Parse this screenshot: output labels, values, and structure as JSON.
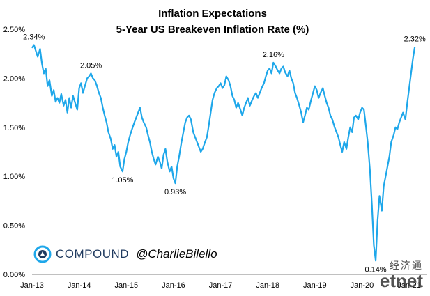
{
  "chart_data": {
    "type": "line",
    "title": "Inflation Expectations",
    "subtitle": "5-Year US Breakeven Inflation Rate (%)",
    "xlabel": "",
    "ylabel": "",
    "xlim": [
      2013.0,
      2021.25
    ],
    "ylim": [
      0,
      2.5
    ],
    "y_ticks": [
      "0.00%",
      "0.50%",
      "1.00%",
      "1.50%",
      "2.00%",
      "2.50%"
    ],
    "y_tick_values": [
      0,
      0.5,
      1.0,
      1.5,
      2.0,
      2.5
    ],
    "x_ticks": [
      "Jan-13",
      "Jan-14",
      "Jan-15",
      "Jan-16",
      "Jan-17",
      "Jan-18",
      "Jan-19",
      "Jan-20",
      "Jan-21"
    ],
    "x_tick_values": [
      2013,
      2014,
      2015,
      2016,
      2017,
      2018,
      2019,
      2020,
      2021
    ],
    "grid": false,
    "legend": "none",
    "series": [
      {
        "color": "#1ea7ea",
        "x": [
          2013.0,
          2013.04,
          2013.08,
          2013.12,
          2013.17,
          2013.21,
          2013.25,
          2013.29,
          2013.33,
          2013.37,
          2013.42,
          2013.46,
          2013.5,
          2013.54,
          2013.58,
          2013.62,
          2013.67,
          2013.71,
          2013.75,
          2013.79,
          2013.83,
          2013.87,
          2013.92,
          2013.96,
          2014.0,
          2014.04,
          2014.08,
          2014.12,
          2014.17,
          2014.21,
          2014.25,
          2014.29,
          2014.33,
          2014.37,
          2014.42,
          2014.46,
          2014.5,
          2014.54,
          2014.58,
          2014.62,
          2014.67,
          2014.71,
          2014.75,
          2014.79,
          2014.83,
          2014.87,
          2014.92,
          2014.96,
          2015.0,
          2015.04,
          2015.08,
          2015.12,
          2015.17,
          2015.21,
          2015.25,
          2015.29,
          2015.33,
          2015.37,
          2015.42,
          2015.46,
          2015.5,
          2015.54,
          2015.58,
          2015.62,
          2015.67,
          2015.71,
          2015.75,
          2015.79,
          2015.83,
          2015.87,
          2015.92,
          2015.96,
          2016.0,
          2016.04,
          2016.08,
          2016.12,
          2016.17,
          2016.21,
          2016.25,
          2016.29,
          2016.33,
          2016.37,
          2016.42,
          2016.46,
          2016.5,
          2016.54,
          2016.58,
          2016.62,
          2016.67,
          2016.71,
          2016.75,
          2016.79,
          2016.83,
          2016.87,
          2016.92,
          2016.96,
          2017.0,
          2017.04,
          2017.08,
          2017.12,
          2017.17,
          2017.21,
          2017.25,
          2017.29,
          2017.33,
          2017.37,
          2017.42,
          2017.46,
          2017.5,
          2017.54,
          2017.58,
          2017.62,
          2017.67,
          2017.71,
          2017.75,
          2017.79,
          2017.83,
          2017.87,
          2017.92,
          2017.96,
          2018.0,
          2018.04,
          2018.08,
          2018.12,
          2018.17,
          2018.21,
          2018.25,
          2018.29,
          2018.33,
          2018.37,
          2018.42,
          2018.46,
          2018.5,
          2018.54,
          2018.58,
          2018.62,
          2018.67,
          2018.71,
          2018.75,
          2018.79,
          2018.83,
          2018.87,
          2018.92,
          2018.96,
          2019.0,
          2019.04,
          2019.08,
          2019.12,
          2019.17,
          2019.21,
          2019.25,
          2019.29,
          2019.33,
          2019.37,
          2019.42,
          2019.46,
          2019.5,
          2019.54,
          2019.58,
          2019.62,
          2019.67,
          2019.71,
          2019.75,
          2019.79,
          2019.83,
          2019.87,
          2019.92,
          2019.96,
          2020.0,
          2020.04,
          2020.08,
          2020.12,
          2020.17,
          2020.21,
          2020.25,
          2020.29,
          2020.33,
          2020.37,
          2020.42,
          2020.46,
          2020.5,
          2020.54,
          2020.58,
          2020.62,
          2020.67,
          2020.71,
          2020.75,
          2020.79,
          2020.83,
          2020.87,
          2020.92,
          2020.96,
          2021.0,
          2021.04,
          2021.08,
          2021.12
        ],
        "values": [
          2.31,
          2.34,
          2.28,
          2.22,
          2.3,
          2.15,
          2.05,
          2.1,
          1.92,
          1.98,
          1.82,
          1.88,
          1.76,
          1.8,
          1.75,
          1.84,
          1.72,
          1.78,
          1.65,
          1.8,
          1.7,
          1.82,
          1.74,
          1.68,
          1.9,
          1.95,
          1.85,
          1.92,
          2.0,
          2.02,
          2.05,
          2.0,
          1.98,
          1.93,
          1.85,
          1.8,
          1.7,
          1.62,
          1.55,
          1.45,
          1.38,
          1.28,
          1.32,
          1.2,
          1.25,
          1.1,
          1.05,
          1.18,
          1.25,
          1.35,
          1.42,
          1.48,
          1.55,
          1.6,
          1.65,
          1.7,
          1.6,
          1.55,
          1.5,
          1.42,
          1.35,
          1.25,
          1.18,
          1.12,
          1.2,
          1.15,
          1.08,
          1.22,
          1.28,
          1.15,
          1.05,
          1.1,
          0.98,
          0.93,
          1.1,
          1.2,
          1.35,
          1.45,
          1.55,
          1.6,
          1.62,
          1.58,
          1.45,
          1.4,
          1.35,
          1.3,
          1.25,
          1.28,
          1.35,
          1.4,
          1.52,
          1.65,
          1.78,
          1.85,
          1.9,
          1.92,
          1.95,
          1.9,
          1.93,
          2.02,
          1.98,
          1.92,
          1.82,
          1.78,
          1.7,
          1.75,
          1.68,
          1.62,
          1.7,
          1.75,
          1.8,
          1.72,
          1.78,
          1.82,
          1.85,
          1.8,
          1.85,
          1.9,
          1.95,
          2.02,
          2.08,
          2.1,
          2.05,
          2.16,
          2.12,
          2.08,
          2.05,
          2.1,
          2.12,
          2.06,
          2.02,
          2.08,
          2.0,
          1.95,
          1.85,
          1.8,
          1.72,
          1.65,
          1.55,
          1.62,
          1.7,
          1.68,
          1.78,
          1.85,
          1.92,
          1.88,
          1.8,
          1.85,
          1.9,
          1.82,
          1.75,
          1.7,
          1.62,
          1.58,
          1.5,
          1.45,
          1.4,
          1.32,
          1.25,
          1.35,
          1.28,
          1.4,
          1.5,
          1.45,
          1.6,
          1.62,
          1.58,
          1.65,
          1.7,
          1.68,
          1.52,
          1.35,
          1.05,
          0.7,
          0.3,
          0.14,
          0.55,
          0.8,
          0.65,
          0.9,
          1.0,
          1.1,
          1.2,
          1.35,
          1.42,
          1.5,
          1.48,
          1.55,
          1.6,
          1.65,
          1.58,
          1.75,
          1.9,
          2.05,
          2.2,
          2.32
        ]
      }
    ],
    "annotations": [
      {
        "text": "2.34%",
        "x": 2013.04,
        "y": 2.34
      },
      {
        "text": "2.05%",
        "x": 2014.25,
        "y": 2.05
      },
      {
        "text": "1.05%",
        "x": 2014.92,
        "y": 1.05
      },
      {
        "text": "0.93%",
        "x": 2016.04,
        "y": 0.93
      },
      {
        "text": "2.16%",
        "x": 2018.12,
        "y": 2.16
      },
      {
        "text": "0.14%",
        "x": 2020.29,
        "y": 0.14
      },
      {
        "text": "2.32%",
        "x": 2021.12,
        "y": 2.32
      }
    ]
  },
  "branding": {
    "logo_icon": "compound-logo-icon",
    "name": "COMPOUND",
    "handle": "@CharlieBilello",
    "watermark_cn": "经济通",
    "watermark_en": "etnet"
  }
}
